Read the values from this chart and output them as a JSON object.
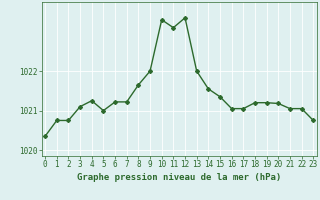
{
  "x": [
    0,
    1,
    2,
    3,
    4,
    5,
    6,
    7,
    8,
    9,
    10,
    11,
    12,
    13,
    14,
    15,
    16,
    17,
    18,
    19,
    20,
    21,
    22,
    23
  ],
  "y": [
    1020.35,
    1020.75,
    1020.75,
    1021.1,
    1021.25,
    1021.0,
    1021.22,
    1021.22,
    1021.65,
    1022.0,
    1023.3,
    1023.1,
    1023.35,
    1022.0,
    1021.55,
    1021.35,
    1021.05,
    1021.05,
    1021.2,
    1021.2,
    1021.18,
    1021.05,
    1021.05,
    1020.75
  ],
  "line_color": "#2d6a2d",
  "marker": "D",
  "marker_size": 2.0,
  "linewidth": 1.0,
  "bg_color": "#dff0f0",
  "grid_color_v": "#c0dada",
  "grid_color_h": "#c0dada",
  "xlabel": "Graphe pression niveau de la mer (hPa)",
  "xlabel_color": "#2d6a2d",
  "xlabel_fontsize": 6.5,
  "tick_color": "#2d6a2d",
  "tick_fontsize": 5.5,
  "ylim": [
    1019.85,
    1023.75
  ],
  "yticks": [
    1020,
    1021,
    1022
  ],
  "xlim": [
    -0.3,
    23.3
  ],
  "xticks": [
    0,
    1,
    2,
    3,
    4,
    5,
    6,
    7,
    8,
    9,
    10,
    11,
    12,
    13,
    14,
    15,
    16,
    17,
    18,
    19,
    20,
    21,
    22,
    23
  ]
}
